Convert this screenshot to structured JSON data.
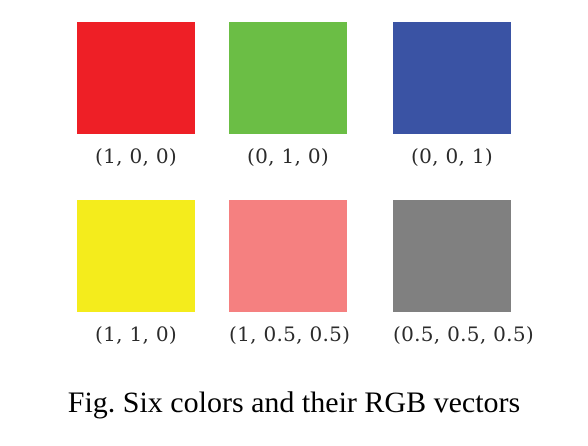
{
  "colors": [
    {
      "label": "(1, 0, 0)",
      "hex": "#ee1f26"
    },
    {
      "label": "(0, 1, 0)",
      "hex": "#6bbe45"
    },
    {
      "label": "(0, 0, 1)",
      "hex": "#3a53a4"
    },
    {
      "label": "(1, 1, 0)",
      "hex": "#f4ec1c"
    },
    {
      "label": "(1, 0.5, 0.5)",
      "hex": "#f58080"
    },
    {
      "label": "(0.5, 0.5, 0.5)",
      "hex": "#808080"
    }
  ],
  "caption": "Fig. Six colors and their RGB vectors"
}
